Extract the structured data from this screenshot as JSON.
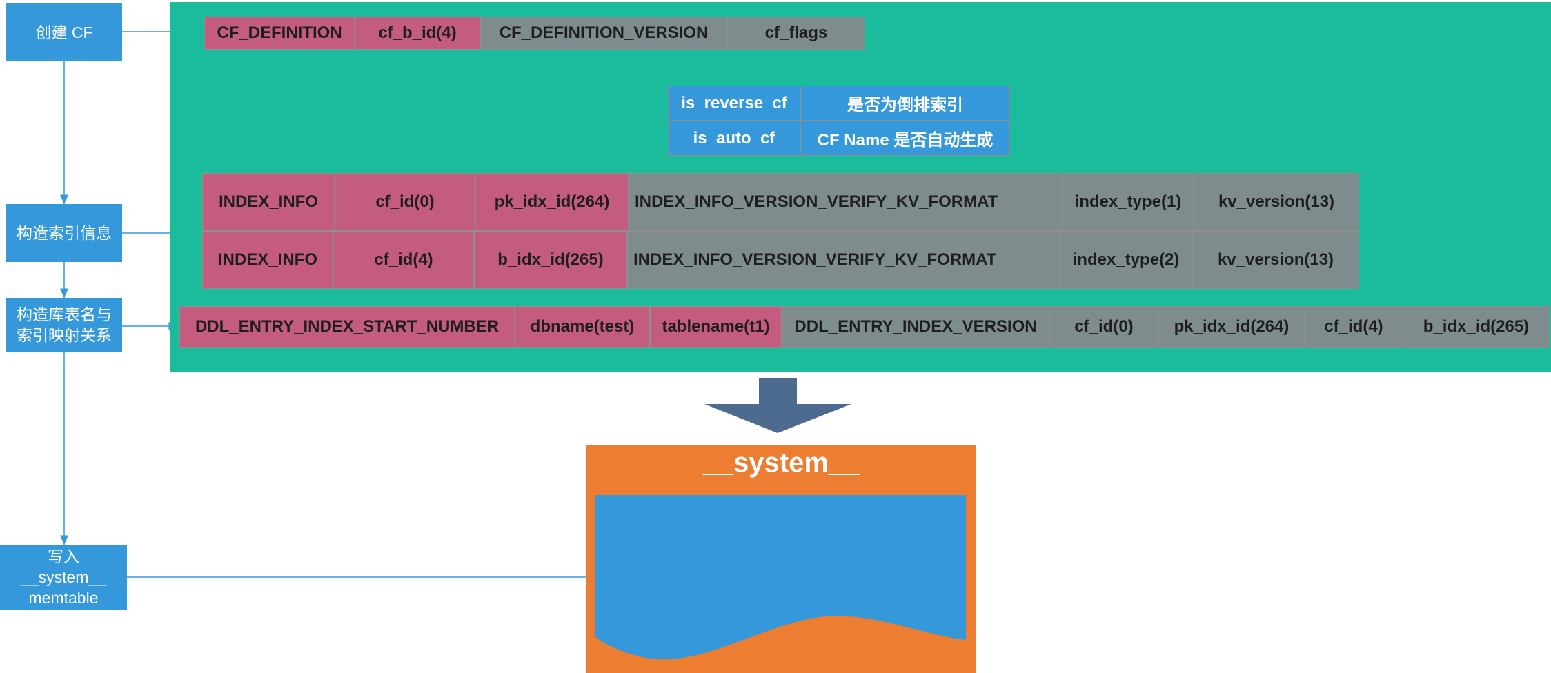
{
  "steps": {
    "create_cf": "创建 CF",
    "build_index": "构造索引信息",
    "build_mapping_line1": "构造库表名与",
    "build_mapping_line2": "索引映射关系",
    "write_line1": "写入",
    "write_line2": "__system__",
    "write_line3": "memtable"
  },
  "cf_definition_row": [
    "CF_DEFINITION",
    "cf_b_id(4)",
    "CF_DEFINITION_VERSION",
    "cf_flags"
  ],
  "cf_flags_table": [
    {
      "flag": "is_reverse_cf",
      "desc": "是否为倒排索引"
    },
    {
      "flag": "is_auto_cf",
      "desc": "CF Name 是否自动生成"
    }
  ],
  "index_info_rows": [
    [
      "INDEX_INFO",
      "cf_id(0)",
      "pk_idx_id(264)",
      "INDEX_INFO_VERSION_VERIFY_KV_FORMAT",
      "index_type(1)",
      "kv_version(13)"
    ],
    [
      "INDEX_INFO",
      "cf_id(4)",
      "b_idx_id(265)",
      "INDEX_INFO_VERSION_VERIFY_KV_FORMAT",
      "index_type(2)",
      "kv_version(13)"
    ]
  ],
  "ddl_entry_row": [
    "DDL_ENTRY_INDEX_START_NUMBER",
    "dbname(test)",
    "tablename(t1)",
    "DDL_ENTRY_INDEX_VERSION",
    "cf_id(0)",
    "pk_idx_id(264)",
    "cf_id(4)",
    "b_idx_id(265)"
  ],
  "system_box": {
    "title": "__system__"
  },
  "colors": {
    "step_blue": "#3498db",
    "panel_green": "#1abc9c",
    "key_pink": "#c45c7f",
    "value_gray": "#7f8c8d",
    "system_orange": "#ed7d31",
    "arrow_slate": "#4d6b8f"
  }
}
